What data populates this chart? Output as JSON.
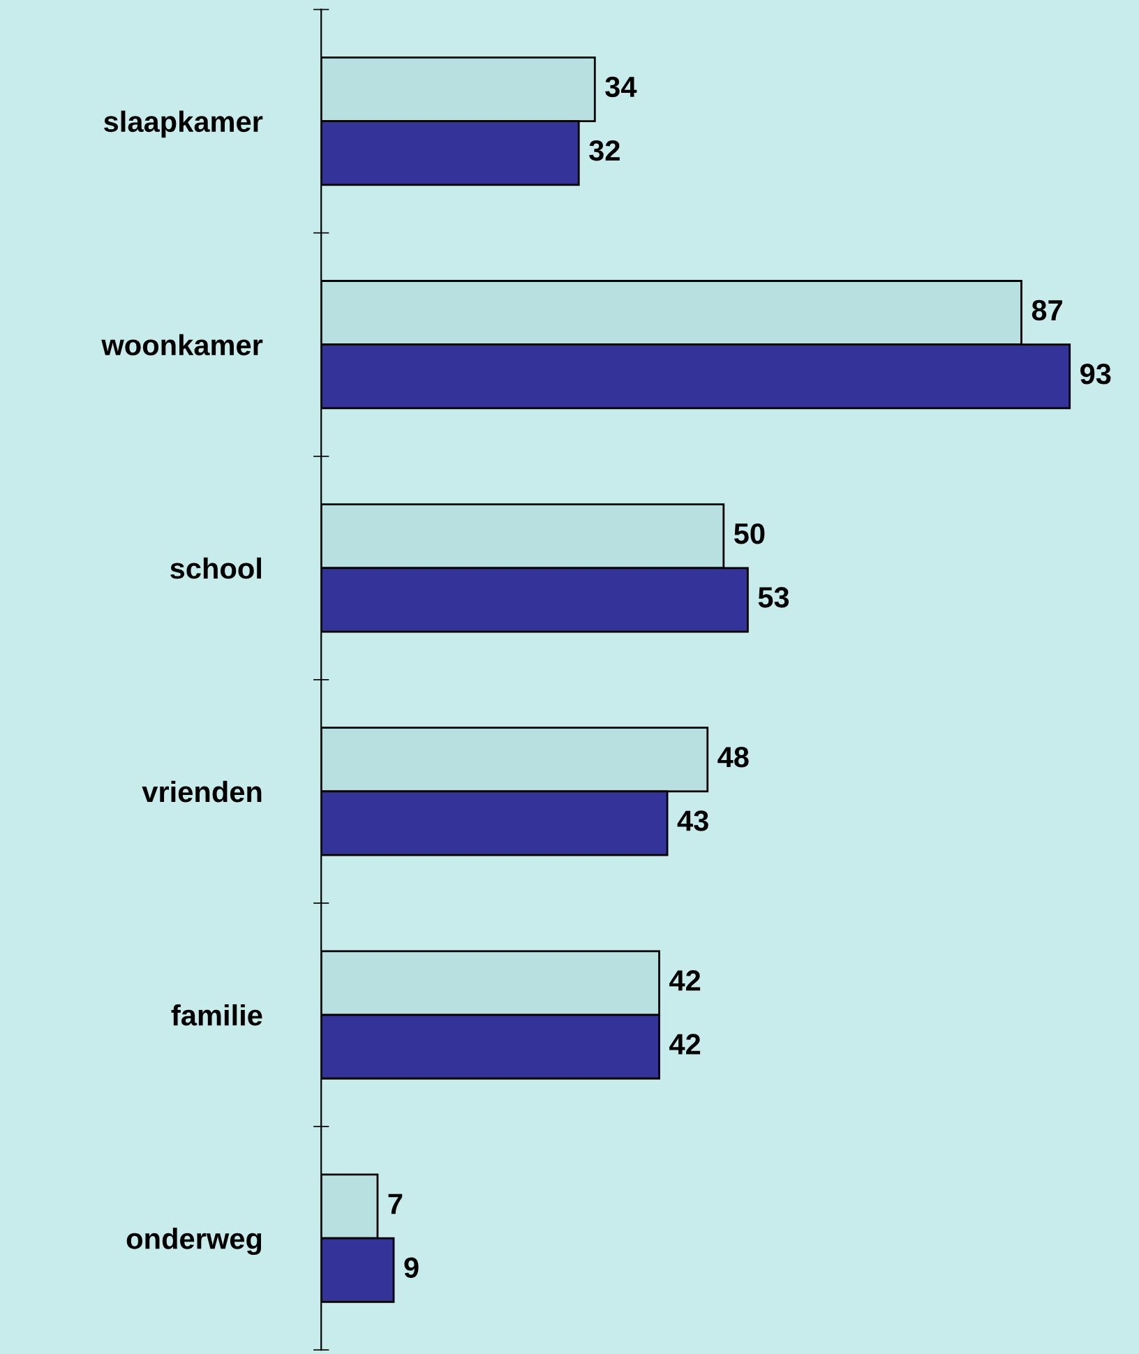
{
  "chart_data": {
    "type": "bar",
    "orientation": "horizontal",
    "categories": [
      "slaapkamer",
      "woonkamer",
      "school",
      "vrienden",
      "familie",
      "onderweg"
    ],
    "series": [
      {
        "color": "#b8e0e0",
        "values": [
          34,
          87,
          50,
          48,
          42,
          7
        ]
      },
      {
        "color": "#333399",
        "values": [
          32,
          93,
          53,
          43,
          42,
          9
        ]
      }
    ],
    "data_labels": true,
    "tick_labels": "y",
    "grid": false,
    "legend": false
  }
}
